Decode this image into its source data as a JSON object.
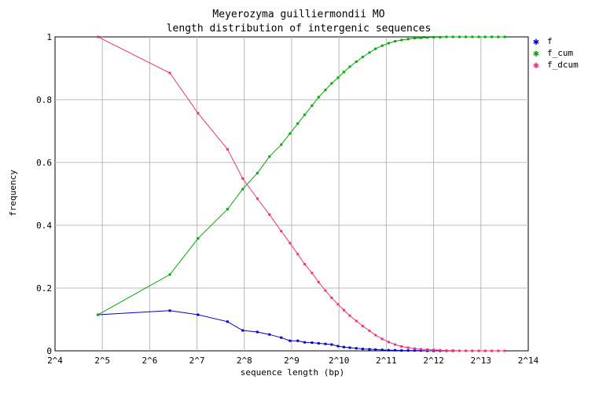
{
  "chart_data": {
    "type": "line",
    "title": "Meyerozyma guilliermondii MO",
    "subtitle": "length distribution of intergenic sequences",
    "xlabel": "sequence length (bp)",
    "ylabel": "frequency",
    "x_scale": "log2",
    "xlim": [
      16,
      16384
    ],
    "ylim": [
      0,
      1
    ],
    "grid": true,
    "legend_position": "right",
    "x_ticks": [
      "2^4",
      "2^5",
      "2^6",
      "2^7",
      "2^8",
      "2^9",
      "2^10",
      "2^11",
      "2^12",
      "2^13",
      "2^14"
    ],
    "y_ticks": [
      "0",
      "0.2",
      "0.4",
      "0.6",
      "0.8",
      "1"
    ],
    "series": [
      {
        "name": "f",
        "color": "#0000cc",
        "x": [
          30,
          86,
          130,
          200,
          250,
          310,
          370,
          440,
          500,
          560,
          620,
          690,
          760,
          840,
          920,
          1010,
          1100,
          1200,
          1320,
          1450,
          1600,
          1750,
          1930,
          2120,
          2330,
          2560,
          2820,
          3100,
          3400,
          3740,
          4100,
          4500,
          4950,
          5440,
          5980,
          6570,
          7220,
          7940,
          8730,
          9600,
          10560,
          11600
        ],
        "y": [
          0.115,
          0.128,
          0.115,
          0.093,
          0.065,
          0.06,
          0.052,
          0.042,
          0.032,
          0.032,
          0.027,
          0.026,
          0.024,
          0.022,
          0.02,
          0.015,
          0.012,
          0.01,
          0.008,
          0.006,
          0.005,
          0.004,
          0.003,
          0.002,
          0.002,
          0.001,
          0.001,
          0.001,
          0.001,
          0,
          0,
          0,
          0,
          0,
          0,
          0,
          0,
          0,
          0,
          0,
          0,
          0
        ]
      },
      {
        "name": "f_cum",
        "color": "#00aa00",
        "x": [
          30,
          86,
          130,
          200,
          250,
          310,
          370,
          440,
          500,
          560,
          620,
          690,
          760,
          840,
          920,
          1010,
          1100,
          1200,
          1320,
          1450,
          1600,
          1750,
          1930,
          2120,
          2330,
          2560,
          2820,
          3100,
          3400,
          3740,
          4100,
          4500,
          4950,
          5440,
          5980,
          6570,
          7220,
          7940,
          8730,
          9600,
          10560,
          11600
        ],
        "y": [
          0.115,
          0.243,
          0.358,
          0.451,
          0.515,
          0.566,
          0.619,
          0.657,
          0.692,
          0.724,
          0.752,
          0.781,
          0.808,
          0.831,
          0.852,
          0.87,
          0.888,
          0.905,
          0.921,
          0.936,
          0.95,
          0.962,
          0.972,
          0.98,
          0.986,
          0.99,
          0.993,
          0.996,
          0.997,
          0.998,
          0.999,
          0.999,
          1,
          1,
          1,
          1,
          1,
          1,
          1,
          1,
          1,
          1
        ]
      },
      {
        "name": "f_dcum",
        "color": "#ee3377",
        "x": [
          30,
          86,
          130,
          200,
          250,
          310,
          370,
          440,
          500,
          560,
          620,
          690,
          760,
          840,
          920,
          1010,
          1100,
          1200,
          1320,
          1450,
          1600,
          1750,
          1930,
          2120,
          2330,
          2560,
          2820,
          3100,
          3400,
          3740,
          4100,
          4500,
          4950,
          5440,
          5980,
          6570,
          7220,
          7940,
          8730,
          9600,
          10560,
          11600
        ],
        "y": [
          1,
          0.885,
          0.757,
          0.642,
          0.549,
          0.485,
          0.434,
          0.381,
          0.343,
          0.308,
          0.276,
          0.248,
          0.219,
          0.192,
          0.169,
          0.148,
          0.13,
          0.112,
          0.095,
          0.079,
          0.064,
          0.05,
          0.038,
          0.028,
          0.02,
          0.014,
          0.01,
          0.007,
          0.005,
          0.004,
          0.003,
          0.002,
          0.001,
          0.001,
          0,
          0,
          0,
          0,
          0,
          0,
          0,
          0
        ]
      }
    ]
  }
}
